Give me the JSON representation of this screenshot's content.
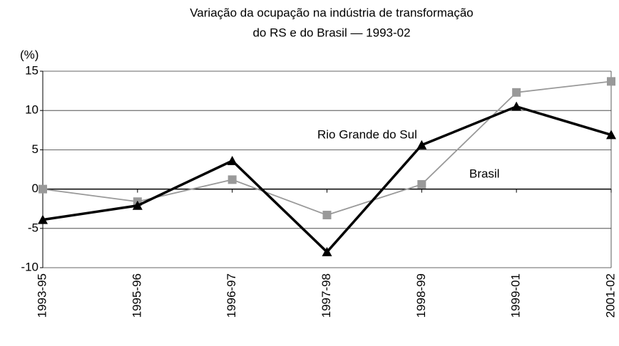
{
  "chart_data": {
    "type": "line",
    "title": [
      "Variação da ocupação na indústria de transformação",
      "do RS e do Brasil — 1993-02"
    ],
    "y_label": "(%)",
    "categories": [
      "1993-95",
      "1995-96",
      "1996-97",
      "1997-98",
      "1998-99",
      "1999-01",
      "2001-02"
    ],
    "series": [
      {
        "name": "Rio Grande do Sul",
        "color": "#000000",
        "marker": "triangle",
        "values": [
          -3.9,
          -2.1,
          3.6,
          -8.0,
          5.6,
          10.5,
          6.9
        ]
      },
      {
        "name": "Brasil",
        "color": "#999999",
        "marker": "square",
        "values": [
          0.0,
          -1.6,
          1.2,
          -3.3,
          0.6,
          12.3,
          13.7
        ]
      }
    ],
    "ylim": [
      -10,
      15
    ],
    "yticks": [
      -10,
      -5,
      0,
      5,
      10,
      15
    ],
    "grid": true
  }
}
